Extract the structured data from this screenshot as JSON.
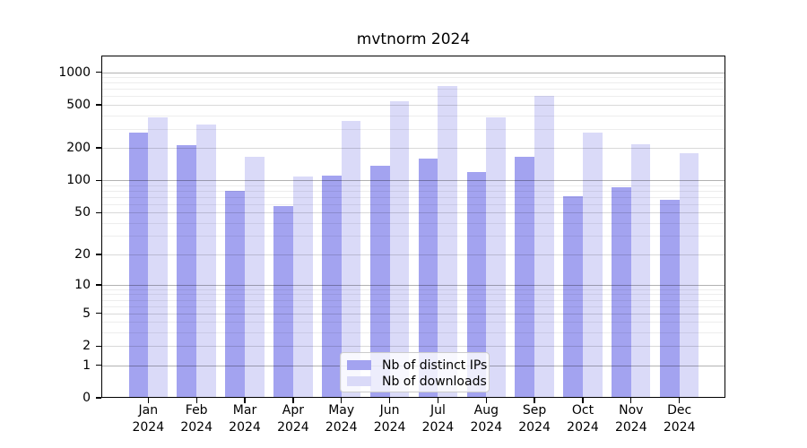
{
  "chart_data": {
    "type": "bar",
    "title": "mvtnorm 2024",
    "categories": [
      "Jan",
      "Feb",
      "Mar",
      "Apr",
      "May",
      "Jun",
      "Jul",
      "Aug",
      "Sep",
      "Oct",
      "Nov",
      "Dec"
    ],
    "category_year": "2024",
    "series": [
      {
        "name": "Nb of distinct IPs",
        "color": "#a3a3f0",
        "values": [
          275,
          212,
          80,
          58,
          111,
          137,
          158,
          119,
          164,
          71,
          86,
          66
        ]
      },
      {
        "name": "Nb of downloads",
        "color": "#dadaf8",
        "values": [
          385,
          327,
          166,
          108,
          352,
          543,
          745,
          386,
          608,
          277,
          218,
          180
        ]
      }
    ],
    "y_scale": "log1p",
    "y_ticks": [
      0,
      1,
      2,
      5,
      10,
      20,
      50,
      100,
      200,
      500,
      1000
    ],
    "ylim": [
      0,
      1430
    ],
    "grid": true,
    "legend_position": "inside-bottom-center",
    "gridline_values": {
      "major": [
        1,
        10,
        100,
        1000
      ],
      "mid": [
        2,
        5,
        20,
        50,
        200,
        500
      ],
      "minor": [
        3,
        4,
        6,
        7,
        8,
        9,
        30,
        40,
        60,
        70,
        80,
        90,
        300,
        400,
        600,
        700,
        800,
        900
      ]
    }
  }
}
